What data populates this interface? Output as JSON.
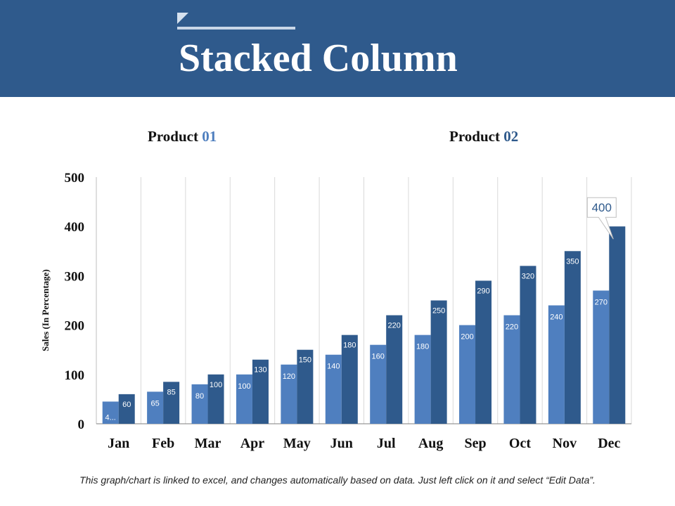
{
  "slide": {
    "title": "Stacked Column",
    "legend": [
      {
        "label": "Product ",
        "number": "01"
      },
      {
        "label": "Product ",
        "number": "02"
      }
    ],
    "footnote": "This graph/chart is linked to excel, and changes automatically based on data. Just left click on it and select “Edit Data”."
  },
  "colors": {
    "header": "#2f5a8c",
    "product_01": "#4f7fbf",
    "product_02": "#2f5a8c",
    "gridline": "#d9d9d9"
  },
  "chart_data": {
    "type": "bar",
    "title": "",
    "xlabel": "",
    "ylabel": "Sales (In Percentage)",
    "ylim": [
      0,
      500
    ],
    "yticks": [
      0,
      100,
      200,
      300,
      400,
      500
    ],
    "grid": "vertical",
    "legend_position": "top",
    "categories": [
      "Jan",
      "Feb",
      "Mar",
      "Apr",
      "May",
      "Jun",
      "Jul",
      "Aug",
      "Sep",
      "Oct",
      "Nov",
      "Dec"
    ],
    "series": [
      {
        "name": "Product 01",
        "values": [
          45,
          65,
          80,
          100,
          120,
          140,
          160,
          180,
          200,
          220,
          240,
          270
        ],
        "labels": [
          "4...",
          "65",
          "80",
          "100",
          "120",
          "140",
          "160",
          "180",
          "200",
          "220",
          "240",
          "270"
        ]
      },
      {
        "name": "Product 02",
        "values": [
          60,
          85,
          100,
          130,
          150,
          180,
          220,
          250,
          290,
          320,
          350,
          400
        ],
        "labels": [
          "60",
          "85",
          "100",
          "130",
          "150",
          "180",
          "220",
          "250",
          "290",
          "320",
          "350",
          "400"
        ]
      }
    ],
    "callout": {
      "category": "Dec",
      "series": "Product 02",
      "text": "400"
    }
  }
}
